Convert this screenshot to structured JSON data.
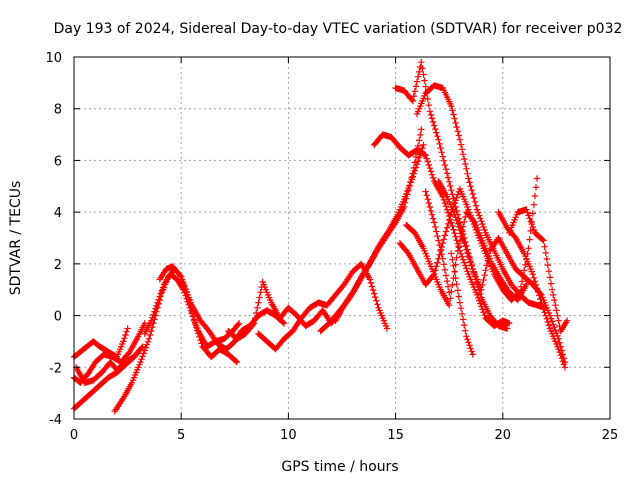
{
  "chart_data": {
    "type": "scatter",
    "title": "Day 193 of 2024, Sidereal Day-to-day VTEC variation (SDTVAR) for receiver p032",
    "xlabel": "GPS time / hours",
    "ylabel": "SDTVAR / TECUs",
    "xlim": [
      0,
      25
    ],
    "ylim": [
      -4,
      10
    ],
    "xticks": [
      0,
      5,
      10,
      15,
      20,
      25
    ],
    "yticks": [
      -4,
      -2,
      0,
      2,
      4,
      6,
      8,
      10
    ],
    "grid": true,
    "marker": "+",
    "color": "#ff0000",
    "series": [
      {
        "x": [
          0.0,
          0.3,
          0.6,
          0.9,
          1.2,
          1.6,
          2.0,
          2.3,
          2.5
        ],
        "y": [
          -1.6,
          -1.4,
          -1.2,
          -1.0,
          -1.2,
          -1.4,
          -1.6,
          -1.0,
          -0.5
        ]
      },
      {
        "x": [
          0.0,
          0.3,
          0.7,
          1.0,
          1.4,
          1.8,
          2.2,
          2.6,
          3.0,
          3.3
        ],
        "y": [
          -2.4,
          -2.6,
          -2.2,
          -1.8,
          -1.5,
          -1.6,
          -1.8,
          -1.4,
          -0.8,
          -0.3
        ]
      },
      {
        "x": [
          0.0,
          0.4,
          0.8,
          1.2,
          1.6,
          2.0,
          2.4,
          2.8,
          3.1
        ],
        "y": [
          -3.6,
          -3.3,
          -3.0,
          -2.7,
          -2.4,
          -2.2,
          -1.9,
          -1.6,
          -1.3
        ]
      },
      {
        "x": [
          0.1,
          0.5,
          0.9,
          1.3,
          1.7,
          2.0,
          2.4,
          2.8,
          3.2
        ],
        "y": [
          -2.0,
          -2.6,
          -2.5,
          -2.2,
          -1.8,
          -2.1,
          -1.8,
          -1.6,
          -1.2
        ]
      },
      {
        "x": [
          1.9,
          2.3,
          2.7,
          3.1,
          3.5,
          3.8,
          4.1,
          4.4,
          4.7,
          5.0,
          5.3,
          5.6,
          6.0,
          6.4,
          6.8,
          7.2,
          7.6
        ],
        "y": [
          -3.7,
          -3.2,
          -2.6,
          -1.8,
          -0.9,
          0.0,
          0.9,
          1.5,
          1.8,
          1.5,
          0.8,
          -0.2,
          -1.2,
          -1.6,
          -1.3,
          -1.5,
          -1.8
        ]
      },
      {
        "x": [
          3.3,
          3.6,
          3.9,
          4.2,
          4.5,
          4.8,
          5.1,
          5.4,
          5.8,
          6.2,
          6.6,
          7.0,
          7.4,
          7.7
        ],
        "y": [
          -0.7,
          -0.2,
          0.5,
          1.2,
          1.6,
          1.4,
          1.0,
          0.3,
          -0.6,
          -1.2,
          -1.0,
          -0.9,
          -0.6,
          -0.3
        ]
      },
      {
        "x": [
          4.0,
          4.3,
          4.6,
          4.9,
          5.2,
          5.5,
          5.9,
          6.3,
          6.7,
          7.1,
          7.5,
          7.8,
          8.2,
          8.6,
          9.0,
          9.4,
          9.8
        ],
        "y": [
          1.4,
          1.8,
          1.9,
          1.6,
          1.0,
          0.4,
          -0.2,
          -0.6,
          -1.1,
          -1.3,
          -1.0,
          -0.6,
          -0.4,
          0.0,
          0.2,
          0.0,
          -0.3
        ]
      },
      {
        "x": [
          7.2,
          7.6,
          8.0,
          8.4,
          8.8,
          9.2,
          9.6,
          10.0,
          10.4,
          10.8,
          11.2,
          11.6,
          12.0,
          12.4
        ],
        "y": [
          -0.6,
          -0.9,
          -0.7,
          -0.3,
          1.3,
          0.5,
          -0.1,
          0.3,
          0.0,
          -0.4,
          -0.2,
          0.2,
          -0.3,
          0.1
        ]
      },
      {
        "x": [
          8.6,
          9.0,
          9.4,
          9.8,
          10.2,
          10.6,
          11.0,
          11.4,
          11.8,
          12.2,
          12.6,
          13.0,
          13.4,
          13.8,
          14.2,
          14.6
        ],
        "y": [
          -0.7,
          -1.0,
          -1.3,
          -0.9,
          -0.6,
          -0.1,
          0.3,
          0.5,
          0.4,
          0.8,
          1.2,
          1.7,
          2.0,
          1.4,
          0.3,
          -0.5
        ]
      },
      {
        "x": [
          11.5,
          11.9,
          12.3,
          12.7,
          13.1,
          13.5,
          13.9,
          14.3,
          14.7,
          15.1,
          15.5,
          15.9,
          16.3
        ],
        "y": [
          -0.6,
          -0.3,
          0.1,
          0.5,
          1.0,
          1.6,
          2.2,
          2.8,
          3.3,
          3.9,
          4.7,
          5.6,
          6.6
        ]
      },
      {
        "x": [
          12.2,
          12.6,
          13.0,
          13.4,
          13.8,
          14.2,
          14.6,
          15.0,
          15.4,
          15.8,
          16.2
        ],
        "y": [
          -0.2,
          0.4,
          0.9,
          1.5,
          2.0,
          2.6,
          3.1,
          3.6,
          4.2,
          5.5,
          7.2
        ]
      },
      {
        "x": [
          14.0,
          14.4,
          14.8,
          15.2,
          15.6,
          16.0,
          16.4,
          16.8,
          17.2,
          17.6,
          18.0,
          18.4,
          18.8,
          19.2,
          19.6,
          20.0,
          20.3
        ],
        "y": [
          6.6,
          7.0,
          6.9,
          6.5,
          6.2,
          6.4,
          6.2,
          5.2,
          4.6,
          3.6,
          2.5,
          1.6,
          0.8,
          -0.1,
          -0.4,
          -0.2,
          -0.3
        ]
      },
      {
        "x": [
          15.0,
          15.4,
          15.8,
          16.2,
          16.6,
          17.0,
          17.4,
          17.8,
          18.2,
          18.6,
          19.0,
          19.4,
          19.8,
          20.2
        ],
        "y": [
          8.8,
          8.7,
          8.3,
          9.8,
          7.9,
          6.8,
          5.5,
          4.2,
          3.0,
          1.8,
          0.7,
          0.0,
          -0.4,
          -0.5
        ]
      },
      {
        "x": [
          16.0,
          16.4,
          16.8,
          17.2,
          17.6,
          18.0,
          18.4,
          18.8,
          19.2,
          19.6,
          20.0,
          20.4,
          20.8,
          21.2,
          21.6,
          22.0
        ],
        "y": [
          7.8,
          8.6,
          8.9,
          8.8,
          8.1,
          6.8,
          5.3,
          4.1,
          3.2,
          2.5,
          1.8,
          1.2,
          0.8,
          0.5,
          0.4,
          0.3
        ]
      },
      {
        "x": [
          15.2,
          15.6,
          16.0,
          16.4,
          16.8,
          17.2,
          17.6,
          18.0,
          18.4,
          18.8,
          19.2,
          19.6,
          20.0,
          20.4,
          20.8,
          21.2,
          21.6
        ],
        "y": [
          2.8,
          2.4,
          1.8,
          1.2,
          1.6,
          2.8,
          4.0,
          4.9,
          4.1,
          3.2,
          2.4,
          1.6,
          1.0,
          0.6,
          0.9,
          2.6,
          5.3
        ]
      },
      {
        "x": [
          15.5,
          15.9,
          16.3,
          16.7,
          17.1,
          17.5,
          17.9,
          18.3,
          18.7,
          19.1,
          19.5,
          19.9,
          20.3,
          20.7,
          21.1
        ],
        "y": [
          3.5,
          3.2,
          2.6,
          1.8,
          1.0,
          0.4,
          2.5,
          4.0,
          3.6,
          2.8,
          2.0,
          1.4,
          0.9,
          0.6,
          1.2
        ]
      },
      {
        "x": [
          17.0,
          17.4,
          17.8,
          18.2,
          18.6,
          19.0,
          19.4,
          19.8,
          20.2,
          20.6,
          21.0,
          21.4,
          21.8,
          22.2,
          22.6,
          22.9
        ],
        "y": [
          5.2,
          4.6,
          3.8,
          2.8,
          1.8,
          1.0,
          2.5,
          3.0,
          2.4,
          1.8,
          1.5,
          1.2,
          0.8,
          0.0,
          -0.9,
          -1.8
        ]
      },
      {
        "x": [
          19.8,
          20.2,
          20.6,
          21.0,
          21.4,
          21.8,
          22.2,
          22.6,
          22.9
        ],
        "y": [
          4.0,
          3.4,
          3.0,
          2.4,
          1.6,
          0.5,
          -0.5,
          -1.3,
          -2.0
        ]
      },
      {
        "x": [
          20.3,
          20.7,
          21.1,
          21.5,
          21.9,
          22.3,
          22.7,
          23.0
        ],
        "y": [
          3.2,
          4.0,
          4.1,
          3.2,
          2.9,
          1.0,
          -0.6,
          -0.2
        ]
      },
      {
        "x": [
          17.6,
          18.0,
          18.3,
          18.6
        ],
        "y": [
          2.4,
          0.5,
          -0.8,
          -1.5
        ]
      },
      {
        "x": [
          16.4,
          16.8,
          17.2,
          17.5
        ],
        "y": [
          4.8,
          3.6,
          2.2,
          0.9
        ]
      }
    ]
  }
}
